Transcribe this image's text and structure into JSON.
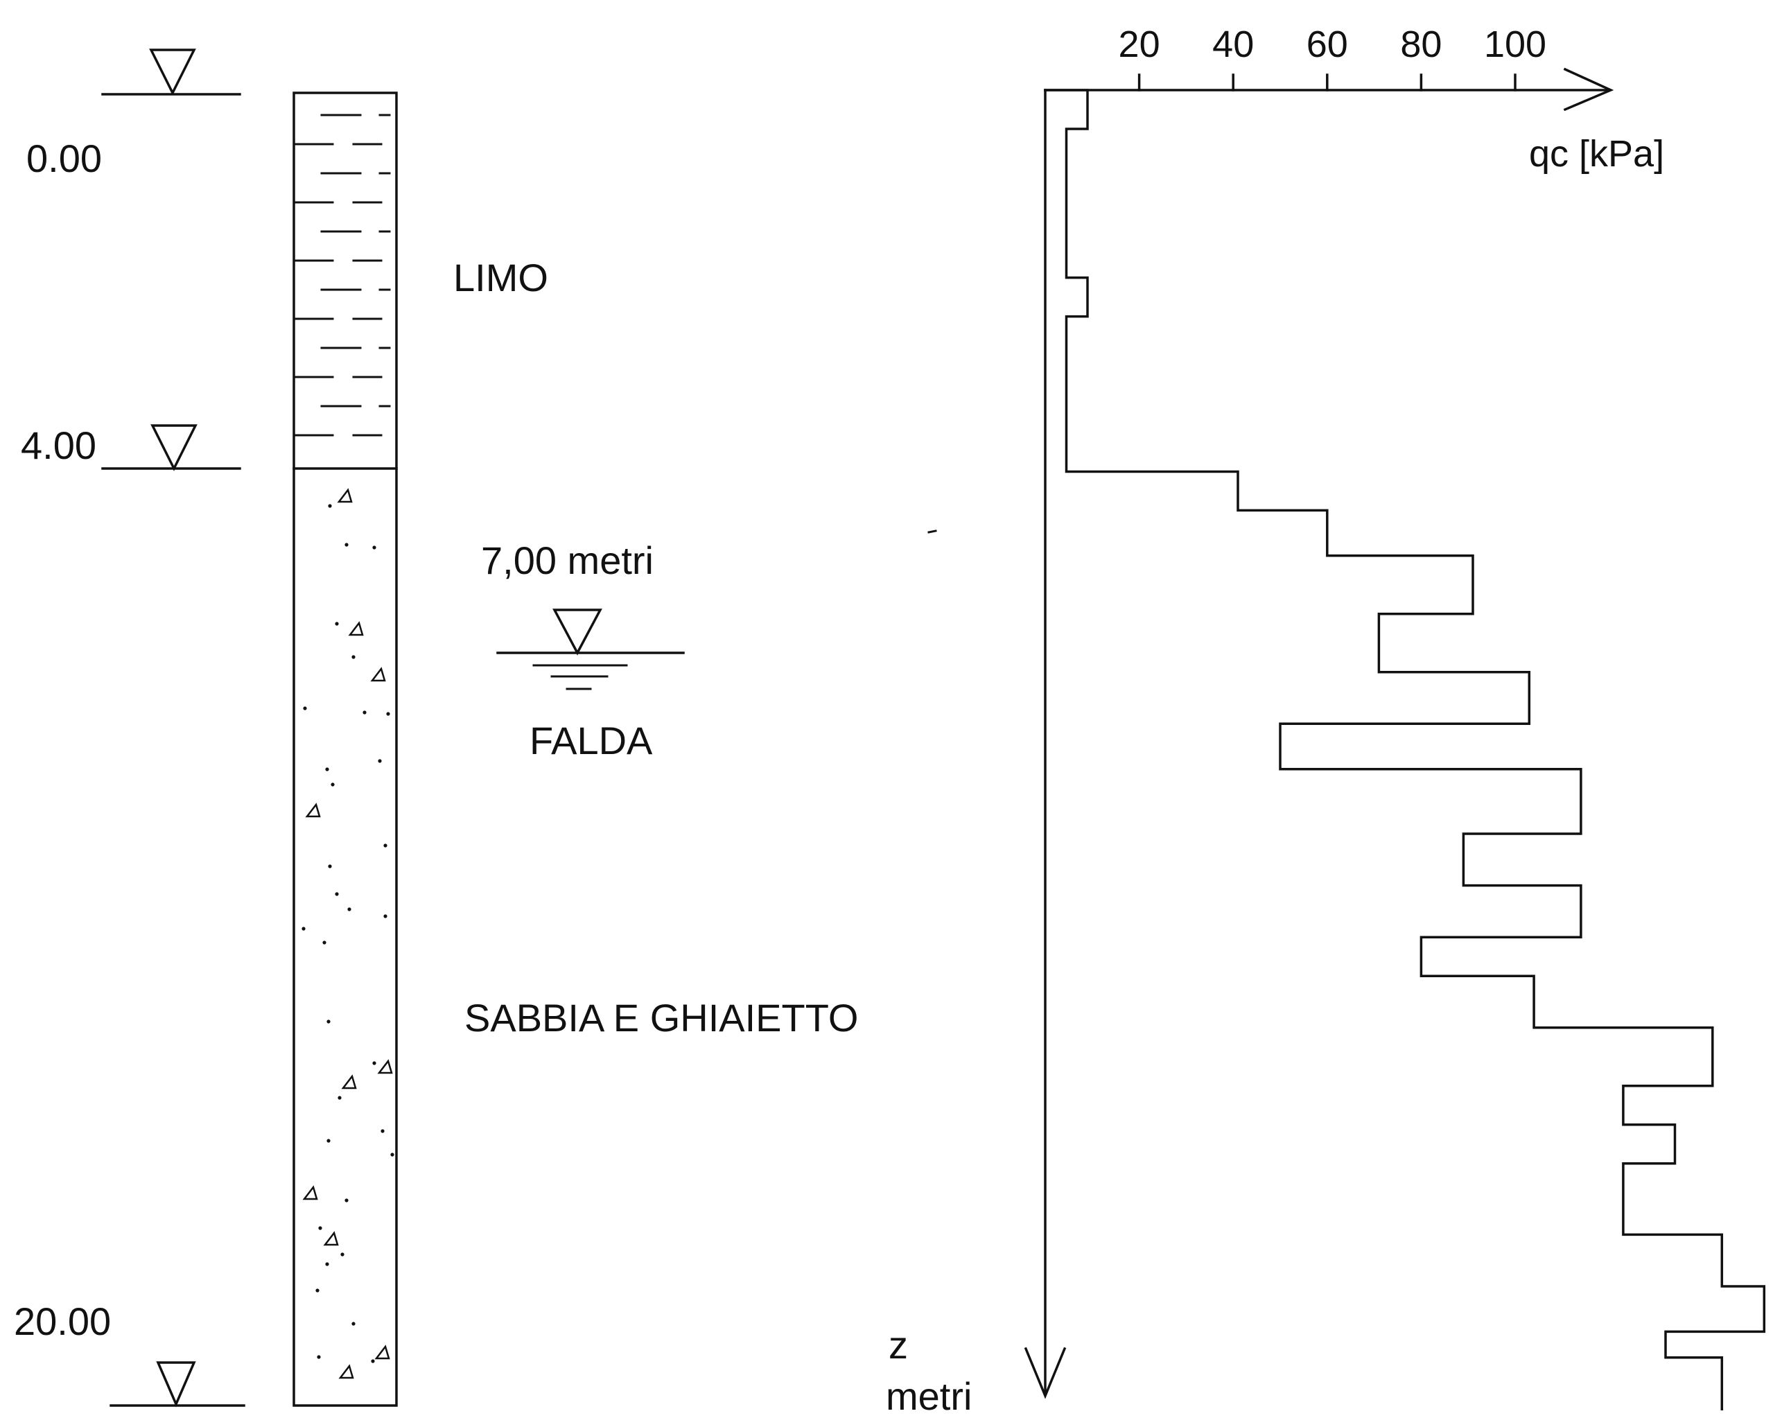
{
  "colors": {
    "ink": "#111111",
    "background": "#ffffff"
  },
  "soil_column": {
    "depth_labels": [
      "0.00",
      "4.00",
      "20.00"
    ],
    "depth_levels_m": [
      0,
      4,
      20
    ],
    "layers": [
      {
        "name": "LIMO",
        "top_m": 0,
        "bottom_m": 4,
        "pattern": "horizontal-dashes"
      },
      {
        "name": "SABBIA E GHIAIETTO",
        "top_m": 4,
        "bottom_m": 20,
        "pattern": "dots-and-triangles"
      }
    ],
    "water_table": {
      "depth_label": "7,00 metri",
      "name": "FALDA",
      "depth_m": 7
    }
  },
  "chart_data": {
    "type": "line",
    "xlabel": "qc [kPa]",
    "ylabel_lines": [
      "z",
      "metri"
    ],
    "x_ticks": [
      "20",
      "40",
      "60",
      "80",
      "100"
    ],
    "x_tick_values": [
      20,
      40,
      60,
      80,
      100
    ],
    "xlim": [
      0,
      120
    ],
    "ylim": [
      0,
      20
    ],
    "y_direction": "downward",
    "grid": false,
    "series": [
      {
        "style": "step",
        "segments": [
          {
            "z_top": 0.0,
            "z_bottom": 0.6,
            "qc": 9
          },
          {
            "z_top": 0.6,
            "z_bottom": 2.9,
            "qc": 4.5
          },
          {
            "z_top": 2.9,
            "z_bottom": 3.5,
            "qc": 9
          },
          {
            "z_top": 3.5,
            "z_bottom": 5.9,
            "qc": 4.5
          },
          {
            "z_top": 5.9,
            "z_bottom": 6.5,
            "qc": 41
          },
          {
            "z_top": 6.5,
            "z_bottom": 7.2,
            "qc": 60
          },
          {
            "z_top": 7.2,
            "z_bottom": 8.1,
            "qc": 91
          },
          {
            "z_top": 8.1,
            "z_bottom": 9.0,
            "qc": 71
          },
          {
            "z_top": 9.0,
            "z_bottom": 9.8,
            "qc": 103
          },
          {
            "z_top": 9.8,
            "z_bottom": 10.5,
            "qc": 50
          },
          {
            "z_top": 10.5,
            "z_bottom": 11.5,
            "qc": 114
          },
          {
            "z_top": 11.5,
            "z_bottom": 12.3,
            "qc": 89
          },
          {
            "z_top": 12.3,
            "z_bottom": 13.1,
            "qc": 114
          },
          {
            "z_top": 13.1,
            "z_bottom": 13.7,
            "qc": 80
          },
          {
            "z_top": 13.7,
            "z_bottom": 14.5,
            "qc": 104
          },
          {
            "z_top": 14.5,
            "z_bottom": 15.4,
            "qc": 142
          },
          {
            "z_top": 15.4,
            "z_bottom": 16.0,
            "qc": 123
          },
          {
            "z_top": 16.0,
            "z_bottom": 16.6,
            "qc": 134
          },
          {
            "z_top": 16.6,
            "z_bottom": 17.7,
            "qc": 123
          },
          {
            "z_top": 17.7,
            "z_bottom": 18.5,
            "qc": 144
          },
          {
            "z_top": 18.5,
            "z_bottom": 19.2,
            "qc": 153
          },
          {
            "z_top": 19.2,
            "z_bottom": 19.6,
            "qc": 132
          },
          {
            "z_top": 19.6,
            "z_bottom": 20.4,
            "qc": 144
          }
        ]
      }
    ]
  }
}
